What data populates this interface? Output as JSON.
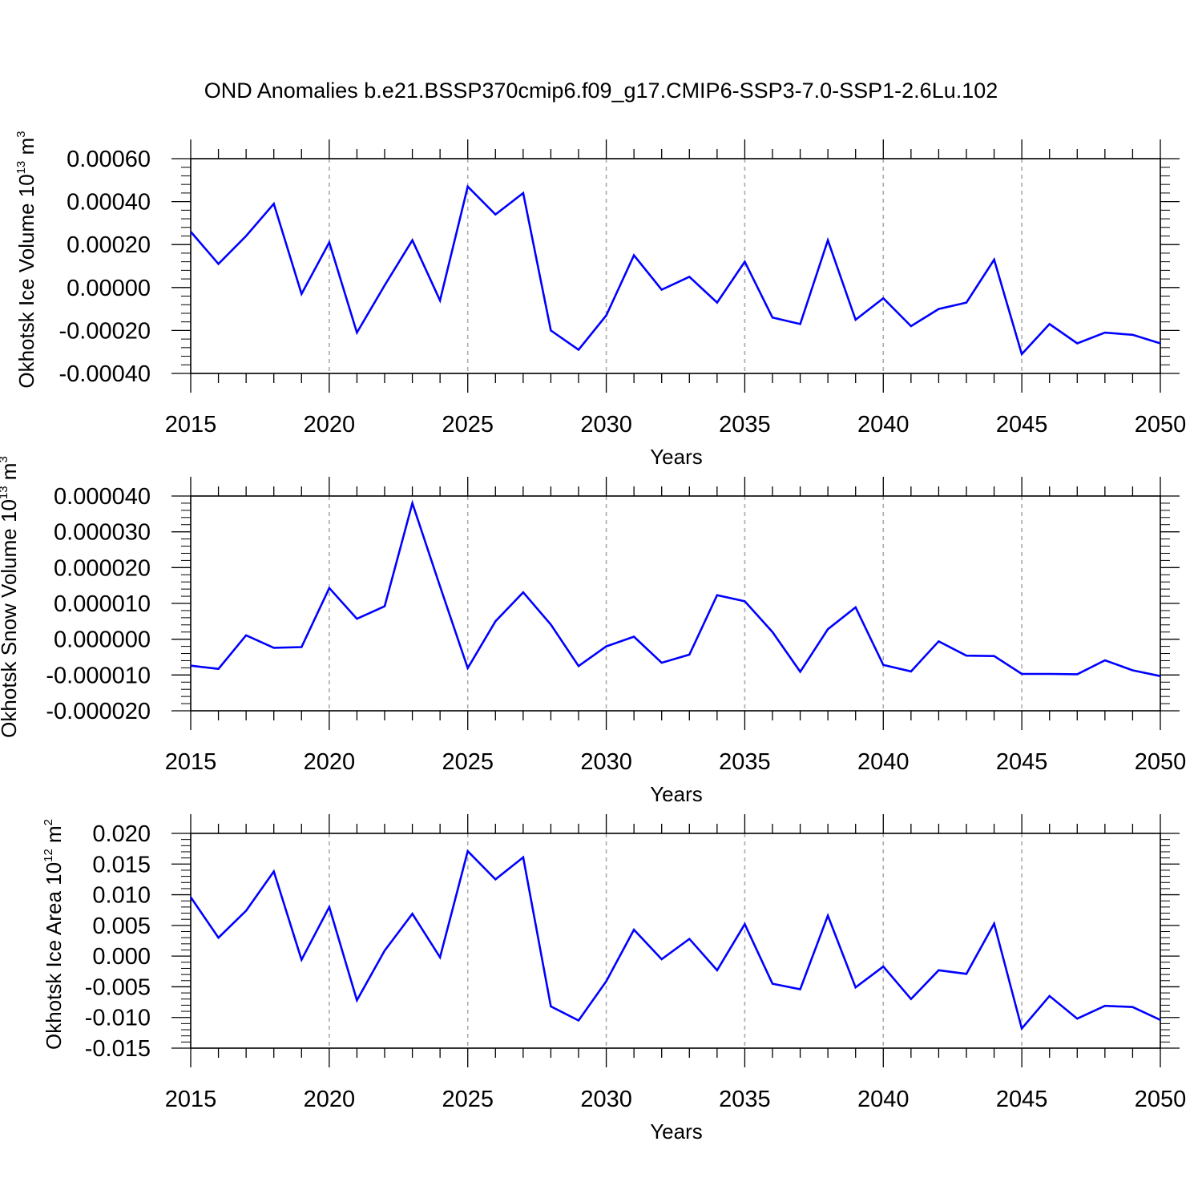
{
  "figure_title": "OND Anomalies b.e21.BSSP370cmip6.f09_g17.CMIP6-SSP3-7.0-SSP1-2.6Lu.102",
  "colors": {
    "series": "#0000ff",
    "axis": "#000000",
    "grid": "#aaaaaa"
  },
  "chart_data": [
    {
      "type": "line",
      "title": "OND Anomalies b.e21.BSSP370cmip6.f09_g17.CMIP6-SSP3-7.0-SSP1-2.6Lu.102",
      "xlabel": "Years",
      "ylabel": {
        "text": "Okhotsk Ice Volume 10",
        "exp": "13",
        "unit": " m",
        "unit_exp": "3"
      },
      "xlim": [
        2015,
        2050
      ],
      "xticks": [
        2015,
        2020,
        2025,
        2030,
        2035,
        2040,
        2045,
        2050
      ],
      "ylim": [
        -0.0004,
        0.0006
      ],
      "yticks": [
        -0.0004,
        -0.0002,
        0.0,
        0.0002,
        0.0004,
        0.0006
      ],
      "ytick_labels": [
        "-0.00040",
        "-0.00020",
        "0.00000",
        "0.00020",
        "0.00040",
        "0.00060"
      ],
      "grid": "vertical dashed at major x ticks",
      "x": [
        2015,
        2016,
        2017,
        2018,
        2019,
        2020,
        2021,
        2022,
        2023,
        2024,
        2025,
        2026,
        2027,
        2028,
        2029,
        2030,
        2031,
        2032,
        2033,
        2034,
        2035,
        2036,
        2037,
        2038,
        2039,
        2040,
        2041,
        2042,
        2043,
        2044,
        2045,
        2046,
        2047,
        2048,
        2049,
        2050
      ],
      "y": [
        0.00026,
        0.00011,
        0.00024,
        0.00039,
        -3e-05,
        0.00021,
        -0.00021,
        1e-05,
        0.00022,
        -6e-05,
        0.00047,
        0.00034,
        0.00044,
        -0.0002,
        -0.00029,
        -0.00013,
        0.00015,
        -1e-05,
        5e-05,
        -7e-05,
        0.00012,
        -0.00014,
        -0.00017,
        0.00022,
        -0.00015,
        -5e-05,
        -0.00018,
        -0.0001,
        -7e-05,
        0.00013,
        -0.00031,
        -0.00017,
        -0.00026,
        -0.00021,
        -0.00022,
        -0.00026
      ]
    },
    {
      "type": "line",
      "xlabel": "Years",
      "ylabel": {
        "text": "Okhotsk Snow Volume 10",
        "exp": "13",
        "unit": " m",
        "unit_exp": "3"
      },
      "xlim": [
        2015,
        2050
      ],
      "xticks": [
        2015,
        2020,
        2025,
        2030,
        2035,
        2040,
        2045,
        2050
      ],
      "ylim": [
        -2e-05,
        4e-05
      ],
      "yticks": [
        -2e-05,
        -1e-05,
        0.0,
        1e-05,
        2e-05,
        3e-05,
        4e-05
      ],
      "ytick_labels": [
        "-0.000020",
        "-0.000010",
        "0.000000",
        "0.000010",
        "0.000020",
        "0.000030",
        "0.000040"
      ],
      "grid": "vertical dashed at major x ticks",
      "x": [
        2015,
        2016,
        2017,
        2018,
        2019,
        2020,
        2021,
        2022,
        2023,
        2024,
        2025,
        2026,
        2027,
        2028,
        2029,
        2030,
        2031,
        2032,
        2033,
        2034,
        2035,
        2036,
        2037,
        2038,
        2039,
        2040,
        2041,
        2042,
        2043,
        2044,
        2045,
        2046,
        2047,
        2048,
        2049,
        2050
      ],
      "y": [
        -7.4e-06,
        -8.3e-06,
        1.1e-06,
        -2.4e-06,
        -2.2e-06,
        1.43e-05,
        5.7e-06,
        9.2e-06,
        3.8e-05,
        1.48e-05,
        -8.1e-06,
        5e-06,
        1.31e-05,
        4.1e-06,
        -7.5e-06,
        -2e-06,
        7e-07,
        -6.6e-06,
        -4.3e-06,
        1.23e-05,
        1.06e-05,
        2e-06,
        -9.1e-06,
        2.8e-06,
        8.9e-06,
        -7.2e-06,
        -9e-06,
        -6e-07,
        -4.6e-06,
        -4.7e-06,
        -9.7e-06,
        -9.7e-06,
        -9.8e-06,
        -5.9e-06,
        -8.7e-06,
        -1.03e-05
      ]
    },
    {
      "type": "line",
      "xlabel": "Years",
      "ylabel": {
        "text": "Okhotsk Ice Area 10",
        "exp": "12",
        "unit": " m",
        "unit_exp": "2"
      },
      "xlim": [
        2015,
        2050
      ],
      "xticks": [
        2015,
        2020,
        2025,
        2030,
        2035,
        2040,
        2045,
        2050
      ],
      "ylim": [
        -0.015,
        0.02
      ],
      "yticks": [
        -0.015,
        -0.01,
        -0.005,
        0.0,
        0.005,
        0.01,
        0.015,
        0.02
      ],
      "ytick_labels": [
        "-0.015",
        "-0.010",
        "-0.005",
        "0.000",
        "0.005",
        "0.010",
        "0.015",
        "0.020"
      ],
      "grid": "vertical dashed at major x ticks",
      "x": [
        2015,
        2016,
        2017,
        2018,
        2019,
        2020,
        2021,
        2022,
        2023,
        2024,
        2025,
        2026,
        2027,
        2028,
        2029,
        2030,
        2031,
        2032,
        2033,
        2034,
        2035,
        2036,
        2037,
        2038,
        2039,
        2040,
        2041,
        2042,
        2043,
        2044,
        2045,
        2046,
        2047,
        2048,
        2049,
        2050
      ],
      "y": [
        0.0096,
        0.003,
        0.0074,
        0.0138,
        -0.0006,
        0.008,
        -0.0072,
        0.0009,
        0.0069,
        -0.0002,
        0.0171,
        0.0125,
        0.0161,
        -0.0082,
        -0.0105,
        -0.0041,
        0.0043,
        -0.0005,
        0.0028,
        -0.0023,
        0.0052,
        -0.0045,
        -0.0054,
        0.0066,
        -0.0051,
        -0.0017,
        -0.007,
        -0.0023,
        -0.0029,
        0.0053,
        -0.0118,
        -0.0065,
        -0.0102,
        -0.0081,
        -0.0083,
        -0.0104
      ]
    }
  ]
}
